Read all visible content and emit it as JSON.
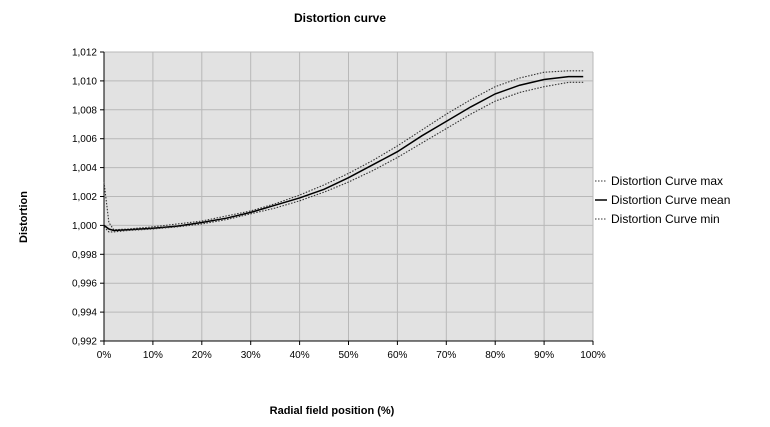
{
  "chart_data": {
    "type": "line",
    "title": "Distortion curve",
    "xlabel": "Radial field position (%)",
    "ylabel": "Distortion",
    "xlim": [
      0,
      100
    ],
    "ylim": [
      0.992,
      1.012
    ],
    "x_ticks": [
      "0%",
      "10%",
      "20%",
      "30%",
      "40%",
      "50%",
      "60%",
      "70%",
      "80%",
      "90%",
      "100%"
    ],
    "y_ticks": [
      "0,992",
      "0,994",
      "0,996",
      "0,998",
      "1,000",
      "1,002",
      "1,004",
      "1,006",
      "1,008",
      "1,010",
      "1,012"
    ],
    "grid": true,
    "legend_position": "right",
    "series": [
      {
        "name": "Distortion Curve max",
        "style": "dotted",
        "color": "#333333",
        "x": [
          0,
          1,
          2,
          5,
          10,
          15,
          20,
          25,
          30,
          35,
          40,
          45,
          50,
          55,
          60,
          65,
          70,
          75,
          80,
          85,
          90,
          95,
          98
        ],
        "y": [
          1.003,
          1.0002,
          0.9997,
          0.99975,
          0.9999,
          1.0001,
          1.0003,
          1.00065,
          1.001,
          1.0015,
          1.0021,
          1.0028,
          1.0036,
          1.0045,
          1.0055,
          1.0066,
          1.0077,
          1.0087,
          1.0096,
          1.0102,
          1.0106,
          1.0107,
          1.0107
        ]
      },
      {
        "name": "Distortion Curve mean",
        "style": "solid",
        "color": "#000000",
        "x": [
          0,
          1,
          2,
          5,
          10,
          15,
          20,
          25,
          30,
          35,
          40,
          45,
          50,
          55,
          60,
          65,
          70,
          75,
          80,
          85,
          90,
          95,
          98
        ],
        "y": [
          1.0,
          0.99975,
          0.99965,
          0.9997,
          0.9998,
          0.99995,
          1.0002,
          1.0005,
          1.0009,
          1.0014,
          1.0019,
          1.0025,
          1.0033,
          1.0042,
          1.0051,
          1.0062,
          1.0072,
          1.0082,
          1.0091,
          1.0097,
          1.0101,
          1.0103,
          1.0103
        ]
      },
      {
        "name": "Distortion Curve min",
        "style": "dotted",
        "color": "#333333",
        "x": [
          0,
          1,
          2,
          5,
          10,
          15,
          20,
          25,
          30,
          35,
          40,
          45,
          50,
          55,
          60,
          65,
          70,
          75,
          80,
          85,
          90,
          95,
          98
        ],
        "y": [
          0.9999,
          0.99955,
          0.99955,
          0.99965,
          0.99975,
          0.9999,
          1.0001,
          1.0004,
          1.0008,
          1.0012,
          1.0017,
          1.0023,
          1.003,
          1.0038,
          1.0047,
          1.0057,
          1.0067,
          1.0077,
          1.0086,
          1.0092,
          1.0096,
          1.0099,
          1.0099
        ]
      }
    ]
  }
}
